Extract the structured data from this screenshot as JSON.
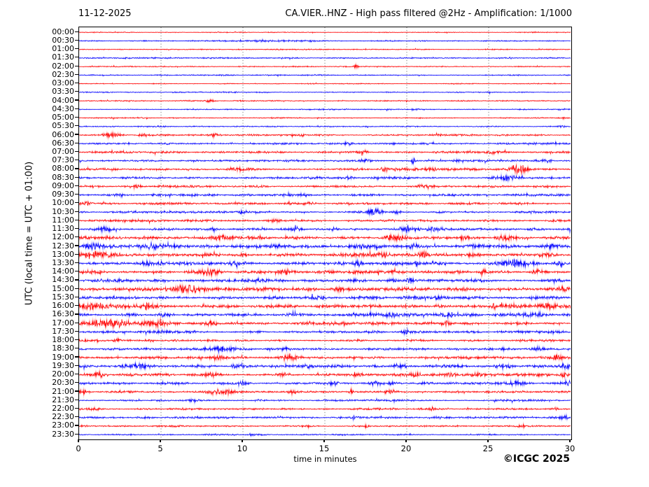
{
  "header": {
    "date": "11-12-2025",
    "title": "CA.VIER..HNZ - High pass filtered @2Hz - Amplification: 1/1000"
  },
  "footer": {
    "copyright": "©ICGC 2025"
  },
  "chart_data": {
    "type": "line",
    "subtype": "helicorder-seismogram",
    "station": "CA.VIER..HNZ",
    "filter": "High pass filtered @2Hz",
    "amplification": "1/1000",
    "date": "11-12-2025",
    "xlabel": "time in minutes",
    "ylabel": "UTC (local time = UTC + 01:00)",
    "xlim": [
      0,
      30
    ],
    "x_ticks": [
      0,
      5,
      10,
      15,
      20,
      25,
      30
    ],
    "minutes_per_row": 30,
    "grid": "vertical dotted lines every 5 minutes",
    "colors": {
      "red_trace": "#ff0000",
      "blue_trace": "#0000ff",
      "grid": "#666666",
      "frame": "#000000"
    },
    "events_format": "[minute, amplitude_px, sigma_minutes]",
    "rows": [
      {
        "label": "00:00",
        "color": "red",
        "noise": 0.35,
        "events": []
      },
      {
        "label": "00:30",
        "color": "blue",
        "noise": 0.45,
        "events": [
          [
            12,
            0.6,
            3
          ]
        ]
      },
      {
        "label": "01:00",
        "color": "red",
        "noise": 0.4,
        "events": []
      },
      {
        "label": "01:30",
        "color": "blue",
        "noise": 0.55,
        "events": []
      },
      {
        "label": "02:00",
        "color": "red",
        "noise": 0.4,
        "events": [
          [
            16.9,
            3,
            0.12
          ]
        ]
      },
      {
        "label": "02:30",
        "color": "blue",
        "noise": 0.55,
        "events": []
      },
      {
        "label": "03:00",
        "color": "red",
        "noise": 0.4,
        "events": []
      },
      {
        "label": "03:30",
        "color": "blue",
        "noise": 0.5,
        "events": []
      },
      {
        "label": "04:00",
        "color": "red",
        "noise": 0.5,
        "events": [
          [
            8,
            0.9,
            0.3
          ]
        ]
      },
      {
        "label": "04:30",
        "color": "blue",
        "noise": 0.5,
        "events": [
          [
            20.5,
            1.2,
            0.2
          ]
        ]
      },
      {
        "label": "05:00",
        "color": "red",
        "noise": 0.5,
        "events": [
          [
            4,
            0.8,
            0.3
          ],
          [
            29.6,
            1,
            0.2
          ]
        ]
      },
      {
        "label": "05:30",
        "color": "blue",
        "noise": 0.55,
        "events": [
          [
            29.5,
            1.4,
            0.25
          ]
        ]
      },
      {
        "label": "06:00",
        "color": "red",
        "noise": 0.7,
        "events": [
          [
            2,
            2.6,
            0.5
          ],
          [
            3.9,
            1.6,
            0.25
          ],
          [
            8.3,
            1.4,
            0.3
          ],
          [
            13.6,
            1.3,
            0.2
          ],
          [
            22,
            1,
            0.3
          ]
        ]
      },
      {
        "label": "06:30",
        "color": "blue",
        "noise": 0.9,
        "events": [
          [
            5.5,
            1,
            0.3
          ],
          [
            16.5,
            1.2,
            0.3
          ]
        ]
      },
      {
        "label": "07:00",
        "color": "red",
        "noise": 0.9,
        "events": [
          [
            17.4,
            1.8,
            0.25
          ],
          [
            25.2,
            1.4,
            0.3
          ]
        ]
      },
      {
        "label": "07:30",
        "color": "blue",
        "noise": 0.9,
        "events": [
          [
            17.5,
            1.4,
            0.3
          ],
          [
            20.4,
            3.4,
            0.15
          ],
          [
            23,
            1.2,
            0.3
          ],
          [
            28.6,
            1.6,
            0.3
          ]
        ]
      },
      {
        "label": "08:00",
        "color": "red",
        "noise": 1.1,
        "events": [
          [
            9.6,
            1.8,
            0.6
          ],
          [
            18.6,
            2.2,
            0.25
          ],
          [
            21.5,
            1.4,
            0.3
          ],
          [
            26.8,
            5,
            0.45
          ]
        ]
      },
      {
        "label": "08:30",
        "color": "blue",
        "noise": 0.95,
        "events": [
          [
            16.5,
            1.3,
            0.3
          ],
          [
            26,
            2.4,
            0.7
          ]
        ]
      },
      {
        "label": "09:00",
        "color": "red",
        "noise": 0.95,
        "events": [
          [
            3.5,
            1.2,
            0.4
          ],
          [
            21,
            1.1,
            0.4
          ]
        ]
      },
      {
        "label": "09:30",
        "color": "blue",
        "noise": 0.95,
        "events": [
          [
            2.5,
            1.4,
            0.3
          ],
          [
            7,
            1.5,
            0.25
          ],
          [
            13.8,
            1.7,
            0.25
          ]
        ]
      },
      {
        "label": "10:00",
        "color": "red",
        "noise": 0.95,
        "events": [
          [
            0.4,
            2,
            0.3
          ],
          [
            14,
            1.2,
            0.4
          ]
        ]
      },
      {
        "label": "10:30",
        "color": "blue",
        "noise": 0.95,
        "events": [
          [
            9.9,
            2.2,
            0.15
          ],
          [
            18,
            6,
            0.4
          ],
          [
            19.4,
            2,
            0.25
          ]
        ]
      },
      {
        "label": "11:00",
        "color": "red",
        "noise": 0.95,
        "events": [
          [
            12,
            1.2,
            0.4
          ],
          [
            29,
            1.3,
            0.3
          ]
        ]
      },
      {
        "label": "11:30",
        "color": "blue",
        "noise": 1.1,
        "events": [
          [
            1.5,
            1.4,
            0.4
          ],
          [
            13.2,
            1.8,
            0.3
          ],
          [
            15.6,
            2,
            0.35
          ],
          [
            20,
            2.4,
            0.5
          ],
          [
            21.7,
            1.8,
            0.3
          ]
        ]
      },
      {
        "label": "12:00",
        "color": "red",
        "noise": 1.5,
        "events": [
          [
            8.5,
            2,
            0.6
          ],
          [
            19.3,
            2.4,
            0.7
          ],
          [
            23.5,
            2,
            0.4
          ],
          [
            26,
            2,
            0.5
          ]
        ]
      },
      {
        "label": "12:30",
        "color": "blue",
        "noise": 1.6,
        "events": [
          [
            0.8,
            2.4,
            0.5
          ],
          [
            4.5,
            2,
            0.4
          ],
          [
            20.5,
            2,
            0.4
          ],
          [
            24.2,
            2.4,
            0.5
          ],
          [
            28.8,
            2.2,
            0.5
          ]
        ]
      },
      {
        "label": "13:00",
        "color": "red",
        "noise": 1.6,
        "events": [
          [
            0.5,
            3,
            0.6
          ],
          [
            1.5,
            2.5,
            0.4
          ],
          [
            18.7,
            2.4,
            0.4
          ],
          [
            21,
            2.4,
            0.4
          ],
          [
            28.5,
            2.4,
            0.5
          ]
        ]
      },
      {
        "label": "13:30",
        "color": "blue",
        "noise": 1.5,
        "events": [
          [
            4.1,
            2.2,
            0.3
          ],
          [
            9.5,
            2,
            0.3
          ],
          [
            17,
            2.8,
            0.3
          ],
          [
            20.6,
            3.8,
            0.12
          ],
          [
            26.7,
            4.2,
            1
          ],
          [
            29.3,
            2,
            0.3
          ]
        ]
      },
      {
        "label": "14:00",
        "color": "red",
        "noise": 1.5,
        "events": [
          [
            8,
            2.2,
            0.7
          ],
          [
            12.6,
            2.4,
            0.4
          ],
          [
            24.6,
            2.6,
            0.2
          ],
          [
            28,
            2,
            0.4
          ]
        ]
      },
      {
        "label": "14:30",
        "color": "blue",
        "noise": 1.35,
        "events": [
          [
            11,
            1.8,
            0.4
          ],
          [
            20.2,
            3.4,
            0.18
          ]
        ]
      },
      {
        "label": "15:00",
        "color": "red",
        "noise": 1.6,
        "events": [
          [
            6.6,
            2.8,
            0.8
          ],
          [
            16,
            2.2,
            0.5
          ],
          [
            29.5,
            2.2,
            0.4
          ]
        ]
      },
      {
        "label": "15:30",
        "color": "blue",
        "noise": 1.35,
        "events": [
          [
            14.6,
            1.8,
            0.5
          ],
          [
            22,
            1.6,
            0.4
          ]
        ]
      },
      {
        "label": "16:00",
        "color": "red",
        "noise": 1.6,
        "events": [
          [
            0.9,
            2.8,
            0.7
          ],
          [
            4.2,
            3.2,
            0.5
          ],
          [
            25.3,
            3,
            0.18
          ],
          [
            28.6,
            2.2,
            0.4
          ]
        ]
      },
      {
        "label": "16:30",
        "color": "blue",
        "noise": 1.45,
        "events": [
          [
            5.2,
            2,
            0.4
          ],
          [
            19,
            1.8,
            0.4
          ],
          [
            22.7,
            2.2,
            0.5
          ],
          [
            27.8,
            2.6,
            0.6
          ]
        ]
      },
      {
        "label": "17:00",
        "color": "red",
        "noise": 1.45,
        "events": [
          [
            1.6,
            3.8,
            1.2
          ],
          [
            4.6,
            3.6,
            0.9
          ],
          [
            8,
            2.4,
            0.4
          ],
          [
            22.4,
            2.6,
            0.3
          ]
        ]
      },
      {
        "label": "17:30",
        "color": "blue",
        "noise": 1.1,
        "events": [
          [
            5,
            1.2,
            0.4
          ],
          [
            20,
            2,
            0.15
          ]
        ]
      },
      {
        "label": "18:00",
        "color": "red",
        "noise": 0.95,
        "events": [
          [
            2.3,
            1.8,
            0.3
          ],
          [
            4.3,
            1.2,
            0.3
          ]
        ]
      },
      {
        "label": "18:30",
        "color": "blue",
        "noise": 0.95,
        "events": [
          [
            8.8,
            2.8,
            0.8
          ],
          [
            12.6,
            1.8,
            0.3
          ],
          [
            26,
            1.8,
            0.3
          ],
          [
            28,
            1.4,
            0.3
          ]
        ]
      },
      {
        "label": "19:00",
        "color": "red",
        "noise": 1.05,
        "events": [
          [
            8.6,
            2.2,
            0.5
          ],
          [
            12.9,
            2.6,
            0.5
          ],
          [
            23.7,
            1.4,
            0.2
          ],
          [
            29.2,
            2.2,
            0.3
          ]
        ]
      },
      {
        "label": "19:30",
        "color": "blue",
        "noise": 1.2,
        "events": [
          [
            3.3,
            2.6,
            0.8
          ],
          [
            9.6,
            2.2,
            0.3
          ],
          [
            14,
            1.8,
            0.3
          ],
          [
            19.6,
            2.4,
            0.4
          ],
          [
            25.9,
            2.6,
            0.5
          ],
          [
            29.7,
            2.6,
            0.3
          ]
        ]
      },
      {
        "label": "20:00",
        "color": "red",
        "noise": 1.2,
        "events": [
          [
            1.2,
            2.6,
            0.5
          ],
          [
            8.1,
            2.4,
            0.5
          ],
          [
            12.5,
            1.8,
            0.3
          ],
          [
            17,
            2.2,
            0.3
          ],
          [
            20.6,
            2.2,
            0.3
          ],
          [
            22.6,
            3.2,
            0.25
          ],
          [
            24.1,
            2.2,
            0.3
          ],
          [
            29.6,
            2.6,
            0.3
          ]
        ]
      },
      {
        "label": "20:30",
        "color": "blue",
        "noise": 1.1,
        "events": [
          [
            9.9,
            2.4,
            0.3
          ],
          [
            15.6,
            1.8,
            0.3
          ],
          [
            18.1,
            2.2,
            0.3
          ],
          [
            19.1,
            1.8,
            0.25
          ],
          [
            26.7,
            1.8,
            0.6
          ],
          [
            29.7,
            2.4,
            0.3
          ]
        ]
      },
      {
        "label": "21:00",
        "color": "red",
        "noise": 0.95,
        "events": [
          [
            0.3,
            2.4,
            0.4
          ],
          [
            8.6,
            3.2,
            0.8
          ],
          [
            13.1,
            1.8,
            0.3
          ],
          [
            16.6,
            2.4,
            0.12
          ],
          [
            19,
            1.6,
            0.3
          ]
        ]
      },
      {
        "label": "21:30",
        "color": "blue",
        "noise": 0.85,
        "events": [
          [
            7,
            1.2,
            0.3
          ],
          [
            11,
            1.7,
            0.12
          ]
        ]
      },
      {
        "label": "22:00",
        "color": "red",
        "noise": 0.85,
        "events": [
          [
            0.9,
            1.6,
            0.3
          ],
          [
            21.6,
            1.8,
            0.18
          ],
          [
            29,
            1.4,
            0.25
          ]
        ]
      },
      {
        "label": "22:30",
        "color": "blue",
        "noise": 0.85,
        "events": [
          [
            16.9,
            2.4,
            0.25
          ],
          [
            29.7,
            1.8,
            0.3
          ]
        ]
      },
      {
        "label": "23:00",
        "color": "red",
        "noise": 0.75,
        "events": [
          [
            17.6,
            2.8,
            0.15
          ],
          [
            27,
            1.4,
            0.25
          ]
        ]
      },
      {
        "label": "23:30",
        "color": "blue",
        "noise": 0.65,
        "events": [
          [
            10.5,
            1.1,
            0.25
          ]
        ]
      }
    ]
  }
}
